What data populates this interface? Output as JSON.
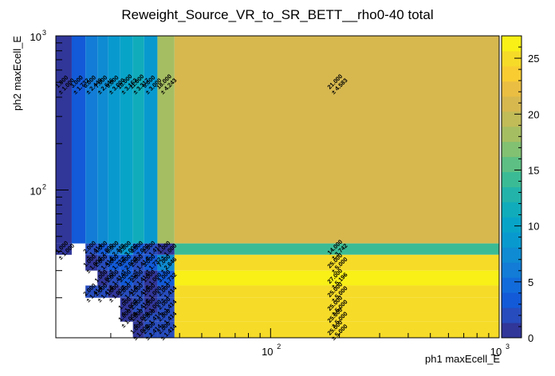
{
  "chart_data": {
    "type": "heatmap",
    "title": "Reweight_Source_VR_to_SR_BETT__rho0-40 total",
    "xlabel": "ph1 maxEcell_E",
    "ylabel": "ph2 maxEcell_E",
    "x_scale": "log",
    "y_scale": "log",
    "xlim": [
      11.5,
      1000
    ],
    "ylim": [
      11,
      1000
    ],
    "x_ticks": [
      {
        "value": 100,
        "base": "10",
        "exp": "2"
      },
      {
        "value": 1000,
        "base": "10",
        "exp": "3"
      }
    ],
    "y_ticks": [
      {
        "value": 100,
        "base": "10",
        "exp": "2"
      },
      {
        "value": 1000,
        "base": "10",
        "exp": "3"
      }
    ],
    "colorbar": {
      "min": 0,
      "max": 27,
      "ticks": [
        0,
        5,
        10,
        15,
        20,
        25
      ]
    },
    "x_edges": [
      11.5,
      13.5,
      15.5,
      17.5,
      19.5,
      22,
      25,
      28,
      32,
      38,
      1000
    ],
    "y_edges": [
      11,
      14,
      16,
      20,
      24,
      30,
      38,
      45,
      1000
    ],
    "cells": [
      {
        "xi": 0,
        "yi": 7,
        "value": 1,
        "label": "1.000",
        "err": "± 1.000"
      },
      {
        "xi": 1,
        "yi": 7,
        "value": 3,
        "label": "3.000",
        "err": "± 1.732"
      },
      {
        "xi": 2,
        "yi": 7,
        "value": 6,
        "label": "6.000",
        "err": "± 2.449"
      },
      {
        "xi": 3,
        "yi": 7,
        "value": 7,
        "label": "7.000",
        "err": "± 2.646"
      },
      {
        "xi": 4,
        "yi": 7,
        "value": 9,
        "label": "9.000",
        "err": "± 3.000"
      },
      {
        "xi": 5,
        "yi": 7,
        "value": 10,
        "label": "10.000",
        "err": "± 3.162"
      },
      {
        "xi": 6,
        "yi": 7,
        "value": 11,
        "label": "11.000",
        "err": "± 3.317"
      },
      {
        "xi": 7,
        "yi": 7,
        "value": 9,
        "label": "9.000",
        "err": "± 3.000"
      },
      {
        "xi": 8,
        "yi": 7,
        "value": 18,
        "label": "18.000",
        "err": "± 4.243"
      },
      {
        "xi": 9,
        "yi": 7,
        "value": 21,
        "label": "21.000",
        "err": "± 4.583"
      },
      {
        "xi": 0,
        "yi": 6,
        "value": 1,
        "label": "1.000",
        "err": "± 1.000"
      },
      {
        "xi": 2,
        "yi": 6,
        "value": 2,
        "label": "2.000",
        "err": "± 1.414"
      },
      {
        "xi": 3,
        "yi": 6,
        "value": 4,
        "label": "4.000",
        "err": "± 2.000"
      },
      {
        "xi": 4,
        "yi": 6,
        "value": 6,
        "label": "6.000",
        "err": "± 2.449"
      },
      {
        "xi": 5,
        "yi": 6,
        "value": 9,
        "label": "9.000",
        "err": "± 3.000"
      },
      {
        "xi": 6,
        "yi": 6,
        "value": 4,
        "label": "4.000",
        "err": "± 2.000"
      },
      {
        "xi": 7,
        "yi": 6,
        "value": 2,
        "label": "2.000",
        "err": "± 1.414"
      },
      {
        "xi": 8,
        "yi": 6,
        "value": 1,
        "label": "1.000",
        "err": "± 1.000"
      },
      {
        "xi": 9,
        "yi": 6,
        "value": 14,
        "label": "14.000",
        "err": "± 3.742"
      },
      {
        "xi": 2,
        "yi": 5,
        "value": 1,
        "label": "1.000",
        "err": "± 1.000"
      },
      {
        "xi": 3,
        "yi": 5,
        "value": 2,
        "label": "2.000",
        "err": "± 1.414"
      },
      {
        "xi": 4,
        "yi": 5,
        "value": 3,
        "label": "3.000",
        "err": "± 1.732"
      },
      {
        "xi": 5,
        "yi": 5,
        "value": 4,
        "label": "4.000",
        "err": "± 2.000"
      },
      {
        "xi": 6,
        "yi": 5,
        "value": 2,
        "label": "2.000",
        "err": "± 1.414"
      },
      {
        "xi": 7,
        "yi": 5,
        "value": 3,
        "label": "3.000",
        "err": "± 1.732"
      },
      {
        "xi": 8,
        "yi": 5,
        "value": 7,
        "label": "7.000",
        "err": "± 2.646"
      },
      {
        "xi": 9,
        "yi": 5,
        "value": 25,
        "label": "25.000",
        "err": "± 5.000"
      },
      {
        "xi": 3,
        "yi": 4,
        "value": 1,
        "label": "1.000",
        "err": "± 1.000"
      },
      {
        "xi": 4,
        "yi": 4,
        "value": 2,
        "label": "2.000",
        "err": "± 1.414"
      },
      {
        "xi": 5,
        "yi": 4,
        "value": 3,
        "label": "3.000",
        "err": "± 1.732"
      },
      {
        "xi": 6,
        "yi": 4,
        "value": 2,
        "label": "2.000",
        "err": "± 1.414"
      },
      {
        "xi": 7,
        "yi": 4,
        "value": 1,
        "label": "1.000",
        "err": "± 1.000"
      },
      {
        "xi": 8,
        "yi": 4,
        "value": 3,
        "label": "3.000",
        "err": "± 1.732"
      },
      {
        "xi": 9,
        "yi": 4,
        "value": 27,
        "label": "27.000",
        "err": "± 5.196"
      },
      {
        "xi": 2,
        "yi": 3,
        "value": 2,
        "label": "2.000",
        "err": "± 1.414"
      },
      {
        "xi": 3,
        "yi": 3,
        "value": 2,
        "label": "2.000",
        "err": "± 1.414"
      },
      {
        "xi": 4,
        "yi": 3,
        "value": 1,
        "label": "1.000",
        "err": "± 1.000"
      },
      {
        "xi": 5,
        "yi": 3,
        "value": 2,
        "label": "2.000",
        "err": "± 1.414"
      },
      {
        "xi": 6,
        "yi": 3,
        "value": 2,
        "label": "2.000",
        "err": "± 1.414"
      },
      {
        "xi": 7,
        "yi": 3,
        "value": 1,
        "label": "1.000",
        "err": "± 1.000"
      },
      {
        "xi": 8,
        "yi": 3,
        "value": 2,
        "label": "2.000",
        "err": "± 1.414"
      },
      {
        "xi": 9,
        "yi": 3,
        "value": 25,
        "label": "25.000",
        "err": "± 5.000"
      },
      {
        "xi": 5,
        "yi": 2,
        "value": 1,
        "label": "1.000",
        "err": "± 1.000"
      },
      {
        "xi": 6,
        "yi": 2,
        "value": 2,
        "label": "2.000",
        "err": "± 1.414"
      },
      {
        "xi": 7,
        "yi": 2,
        "value": 1,
        "label": "1.000",
        "err": "± 1.000"
      },
      {
        "xi": 8,
        "yi": 2,
        "value": 2,
        "label": "2.000",
        "err": "± 1.414"
      },
      {
        "xi": 9,
        "yi": 2,
        "value": 25,
        "label": "25.000",
        "err": "± 5.000"
      },
      {
        "xi": 5,
        "yi": 1,
        "value": 1,
        "label": "1.000",
        "err": "± 1.000"
      },
      {
        "xi": 6,
        "yi": 1,
        "value": 1,
        "label": "1.000",
        "err": "± 1.000"
      },
      {
        "xi": 7,
        "yi": 1,
        "value": 2,
        "label": "2.000",
        "err": "± 1.414"
      },
      {
        "xi": 8,
        "yi": 1,
        "value": 2,
        "label": "2.000",
        "err": "± 1.414"
      },
      {
        "xi": 9,
        "yi": 1,
        "value": 25,
        "label": "25.000",
        "err": "± 5.000"
      },
      {
        "xi": 6,
        "yi": 0,
        "value": 1,
        "label": "1.000",
        "err": "± 1.000"
      },
      {
        "xi": 7,
        "yi": 0,
        "value": 2,
        "label": "2.000",
        "err": "± 1.414"
      },
      {
        "xi": 8,
        "yi": 0,
        "value": 2,
        "label": "2.000",
        "err": "± 1.414"
      },
      {
        "xi": 9,
        "yi": 0,
        "value": 25,
        "label": "25.000",
        "err": "± 5.000"
      }
    ]
  }
}
